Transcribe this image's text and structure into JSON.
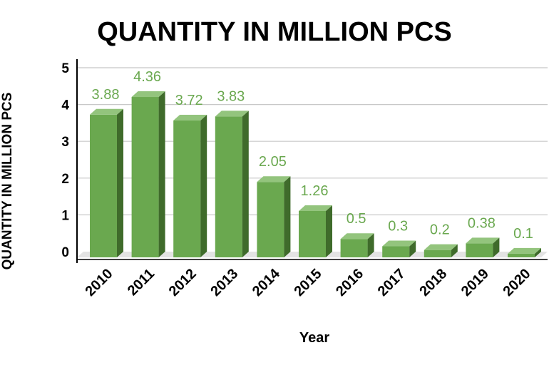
{
  "chart_data": {
    "type": "bar",
    "title": "QUANTITY IN MILLION PCS",
    "xlabel": "Year",
    "ylabel": "QUANTITY IN MILLION PCS",
    "categories": [
      "2010",
      "2011",
      "2012",
      "2013",
      "2014",
      "2015",
      "2016",
      "2017",
      "2018",
      "2019",
      "2020"
    ],
    "values": [
      3.88,
      4.36,
      3.72,
      3.83,
      2.05,
      1.26,
      0.5,
      0.3,
      0.2,
      0.38,
      0.1
    ],
    "data_labels": [
      "3.88",
      "4.36",
      "3.72",
      "3.83",
      "2.05",
      "1.26",
      "0.5",
      "0.3",
      "0.2",
      "0.38",
      "0.1"
    ],
    "yticks": [
      "0",
      "1",
      "2",
      "3",
      "4",
      "5"
    ],
    "ylim": [
      0,
      5
    ],
    "grid": true,
    "legend": "none",
    "style": "3d-column",
    "colors": {
      "bar_front": "#6aa84f",
      "bar_side": "#3f6b2b",
      "bar_top": "#93c47d",
      "data_label": "#6aa84f",
      "floor": "#e3e3e3"
    }
  }
}
